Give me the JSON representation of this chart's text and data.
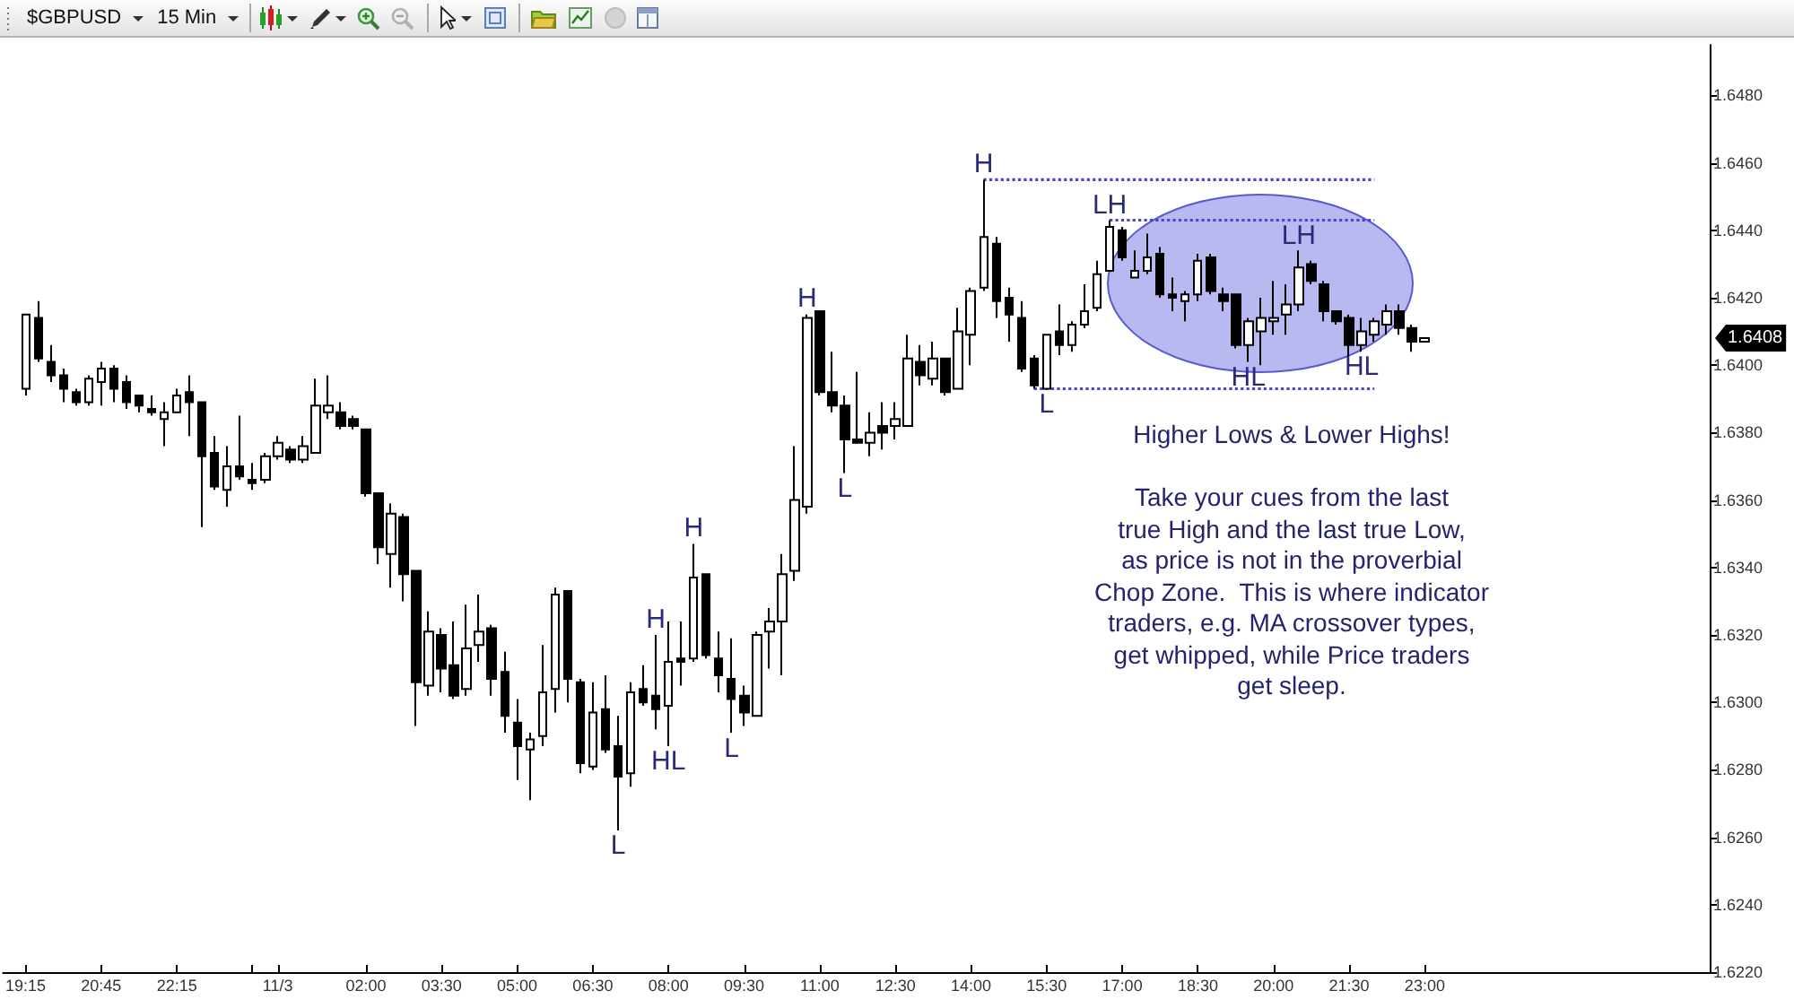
{
  "chart_data": {
    "type": "candlestick",
    "title": "$GBPUSD",
    "subtitle": "15 Min",
    "x": [
      "--11-02T19:15",
      "--11-02T19:30",
      "--11-02T19:45",
      "--11-02T20:00",
      "--11-02T20:15",
      "--11-02T20:30",
      "--11-02T20:45",
      "--11-02T21:00",
      "--11-02T21:15",
      "--11-02T21:30",
      "--11-02T21:45",
      "--11-02T22:00",
      "--11-02T22:15",
      "--11-02T22:30",
      "--11-02T22:45",
      "--11-02T23:00",
      "--11-02T23:15",
      "--11-02T23:30",
      "--11-02T23:45",
      "--11-03T00:00",
      "--11-03T00:15",
      "--11-03T00:30",
      "--11-03T00:45",
      "--11-03T01:00",
      "--11-03T01:15",
      "--11-03T01:30",
      "--11-03T01:45",
      "--11-03T02:00",
      "--11-03T02:15",
      "--11-03T02:30",
      "--11-03T02:45",
      "--11-03T03:00",
      "--11-03T03:15",
      "--11-03T03:30",
      "--11-03T03:45",
      "--11-03T04:00",
      "--11-03T04:15",
      "--11-03T04:30",
      "--11-03T04:45",
      "--11-03T05:00",
      "--11-03T05:15",
      "--11-03T05:30",
      "--11-03T05:45",
      "--11-03T06:00",
      "--11-03T06:15",
      "--11-03T06:30",
      "--11-03T06:45",
      "--11-03T07:00",
      "--11-03T07:15",
      "--11-03T07:30",
      "--11-03T07:45",
      "--11-03T08:00",
      "--11-03T08:15",
      "--11-03T08:30",
      "--11-03T08:45",
      "--11-03T09:00",
      "--11-03T09:15",
      "--11-03T09:30",
      "--11-03T09:45",
      "--11-03T10:00",
      "--11-03T10:15",
      "--11-03T10:30",
      "--11-03T10:45",
      "--11-03T11:00",
      "--11-03T11:15",
      "--11-03T11:30",
      "--11-03T11:45",
      "--11-03T12:00",
      "--11-03T12:15",
      "--11-03T12:30",
      "--11-03T12:45",
      "--11-03T13:00",
      "--11-03T13:15",
      "--11-03T13:30",
      "--11-03T13:45",
      "--11-03T14:00",
      "--11-03T14:15",
      "--11-03T14:30",
      "--11-03T14:45",
      "--11-03T15:00",
      "--11-03T15:15",
      "--11-03T15:30",
      "--11-03T15:45",
      "--11-03T16:00",
      "--11-03T16:15",
      "--11-03T16:30",
      "--11-03T16:45",
      "--11-03T17:00",
      "--11-03T17:15",
      "--11-03T17:30",
      "--11-03T17:45",
      "--11-03T18:00",
      "--11-03T18:15",
      "--11-03T18:30",
      "--11-03T18:45",
      "--11-03T19:00",
      "--11-03T19:15",
      "--11-03T19:30",
      "--11-03T19:45",
      "--11-03T20:00",
      "--11-03T20:15",
      "--11-03T20:30",
      "--11-03T20:45",
      "--11-03T21:00",
      "--11-03T21:15",
      "--11-03T21:30",
      "--11-03T21:45",
      "--11-03T22:00",
      "--11-03T22:15",
      "--11-03T22:30",
      "--11-03T22:45",
      "--11-03T23:00"
    ],
    "ohlc": [
      [
        1.6393,
        1.6415,
        1.6391,
        1.6415
      ],
      [
        1.6414,
        1.6419,
        1.6401,
        1.6402
      ],
      [
        1.6401,
        1.6406,
        1.6395,
        1.6397
      ],
      [
        1.6397,
        1.6399,
        1.6389,
        1.6393
      ],
      [
        1.6392,
        1.6393,
        1.6388,
        1.6389
      ],
      [
        1.6389,
        1.6397,
        1.6388,
        1.6396
      ],
      [
        1.6395,
        1.6401,
        1.6388,
        1.6399
      ],
      [
        1.6399,
        1.64,
        1.6389,
        1.6393
      ],
      [
        1.6395,
        1.6397,
        1.6387,
        1.6389
      ],
      [
        1.6391,
        1.6391,
        1.6386,
        1.6388
      ],
      [
        1.6387,
        1.6391,
        1.6385,
        1.6386
      ],
      [
        1.6384,
        1.6389,
        1.6376,
        1.6386
      ],
      [
        1.6386,
        1.6393,
        1.6386,
        1.6391
      ],
      [
        1.6392,
        1.6397,
        1.6379,
        1.6389
      ],
      [
        1.6389,
        1.6389,
        1.6352,
        1.6373
      ],
      [
        1.6374,
        1.6379,
        1.6363,
        1.6364
      ],
      [
        1.6363,
        1.6376,
        1.6358,
        1.637
      ],
      [
        1.637,
        1.6385,
        1.6366,
        1.6367
      ],
      [
        1.6366,
        1.6371,
        1.6363,
        1.6365
      ],
      [
        1.6366,
        1.6374,
        1.6365,
        1.6373
      ],
      [
        1.6373,
        1.6379,
        1.6372,
        1.6377
      ],
      [
        1.6375,
        1.6376,
        1.6371,
        1.6372
      ],
      [
        1.6372,
        1.6379,
        1.6371,
        1.6376
      ],
      [
        1.6374,
        1.6396,
        1.6374,
        1.6388
      ],
      [
        1.6386,
        1.6397,
        1.6384,
        1.6388
      ],
      [
        1.6386,
        1.6389,
        1.6381,
        1.6382
      ],
      [
        1.6384,
        1.6385,
        1.6381,
        1.6382
      ],
      [
        1.6381,
        1.6381,
        1.6361,
        1.6362
      ],
      [
        1.6362,
        1.6362,
        1.6341,
        1.6346
      ],
      [
        1.6344,
        1.6359,
        1.6334,
        1.6356
      ],
      [
        1.6355,
        1.6356,
        1.633,
        1.6338
      ],
      [
        1.6339,
        1.6339,
        1.6293,
        1.6306
      ],
      [
        1.6305,
        1.6327,
        1.6302,
        1.6321
      ],
      [
        1.632,
        1.6322,
        1.6303,
        1.631
      ],
      [
        1.6311,
        1.6324,
        1.6301,
        1.6302
      ],
      [
        1.6304,
        1.6329,
        1.6302,
        1.6316
      ],
      [
        1.6317,
        1.6332,
        1.6312,
        1.6321
      ],
      [
        1.6322,
        1.6323,
        1.6302,
        1.6307
      ],
      [
        1.6309,
        1.6315,
        1.6291,
        1.6296
      ],
      [
        1.6294,
        1.6301,
        1.6277,
        1.6287
      ],
      [
        1.6286,
        1.6291,
        1.6271,
        1.6289
      ],
      [
        1.629,
        1.6317,
        1.6287,
        1.6303
      ],
      [
        1.6304,
        1.6334,
        1.6297,
        1.6332
      ],
      [
        1.6333,
        1.6333,
        1.63,
        1.6307
      ],
      [
        1.6306,
        1.6307,
        1.6279,
        1.6282
      ],
      [
        1.6281,
        1.6306,
        1.628,
        1.6297
      ],
      [
        1.6298,
        1.6308,
        1.6285,
        1.6286
      ],
      [
        1.6287,
        1.6296,
        1.6262,
        1.6278
      ],
      [
        1.6279,
        1.6306,
        1.6275,
        1.6303
      ],
      [
        1.6304,
        1.6311,
        1.6299,
        1.63
      ],
      [
        1.6302,
        1.632,
        1.6292,
        1.6298
      ],
      [
        1.6299,
        1.6324,
        1.6287,
        1.6312
      ],
      [
        1.6313,
        1.6324,
        1.6305,
        1.6312
      ],
      [
        1.6313,
        1.6347,
        1.6312,
        1.6337
      ],
      [
        1.6338,
        1.6338,
        1.6313,
        1.6314
      ],
      [
        1.6313,
        1.6321,
        1.6303,
        1.6308
      ],
      [
        1.6307,
        1.6319,
        1.6291,
        1.6301
      ],
      [
        1.6302,
        1.6305,
        1.6293,
        1.6297
      ],
      [
        1.6296,
        1.6321,
        1.6296,
        1.632
      ],
      [
        1.6321,
        1.6328,
        1.631,
        1.6324
      ],
      [
        1.6324,
        1.6344,
        1.6308,
        1.6338
      ],
      [
        1.6339,
        1.6376,
        1.6336,
        1.636
      ],
      [
        1.6358,
        1.6415,
        1.6356,
        1.6414
      ],
      [
        1.6416,
        1.6416,
        1.6391,
        1.6392
      ],
      [
        1.6392,
        1.6404,
        1.6386,
        1.6388
      ],
      [
        1.6388,
        1.6391,
        1.6368,
        1.6378
      ],
      [
        1.6378,
        1.6398,
        1.6377,
        1.6377
      ],
      [
        1.6377,
        1.6386,
        1.6373,
        1.638
      ],
      [
        1.6382,
        1.6389,
        1.6375,
        1.638
      ],
      [
        1.6382,
        1.6389,
        1.6378,
        1.6384
      ],
      [
        1.6382,
        1.6409,
        1.6382,
        1.6402
      ],
      [
        1.6401,
        1.6406,
        1.6394,
        1.6397
      ],
      [
        1.6396,
        1.6407,
        1.6394,
        1.6402
      ],
      [
        1.6402,
        1.6402,
        1.6391,
        1.6392
      ],
      [
        1.6393,
        1.6417,
        1.6393,
        1.641
      ],
      [
        1.6409,
        1.6423,
        1.64,
        1.6422
      ],
      [
        1.6423,
        1.6455,
        1.6422,
        1.6438
      ],
      [
        1.6436,
        1.6438,
        1.6414,
        1.6419
      ],
      [
        1.642,
        1.6423,
        1.6407,
        1.6415
      ],
      [
        1.6414,
        1.6419,
        1.6398,
        1.6399
      ],
      [
        1.6402,
        1.6403,
        1.6393,
        1.6394
      ],
      [
        1.6393,
        1.6409,
        1.6393,
        1.6409
      ],
      [
        1.641,
        1.6418,
        1.6403,
        1.6406
      ],
      [
        1.6406,
        1.6413,
        1.6404,
        1.6412
      ],
      [
        1.6412,
        1.6424,
        1.6411,
        1.6416
      ],
      [
        1.6417,
        1.6431,
        1.6416,
        1.6427
      ],
      [
        1.6428,
        1.6443,
        1.6428,
        1.6441
      ],
      [
        1.644,
        1.6441,
        1.6431,
        1.6432
      ],
      [
        1.6426,
        1.6434,
        1.6426,
        1.6428
      ],
      [
        1.6428,
        1.6439,
        1.6427,
        1.6432
      ],
      [
        1.6433,
        1.6435,
        1.642,
        1.6421
      ],
      [
        1.6421,
        1.6426,
        1.6416,
        1.642
      ],
      [
        1.6419,
        1.6422,
        1.6413,
        1.6421
      ],
      [
        1.6421,
        1.6433,
        1.6419,
        1.6431
      ],
      [
        1.6432,
        1.6433,
        1.6421,
        1.6422
      ],
      [
        1.6421,
        1.6423,
        1.6416,
        1.6419
      ],
      [
        1.6421,
        1.6421,
        1.6405,
        1.6406
      ],
      [
        1.6406,
        1.6414,
        1.6401,
        1.6413
      ],
      [
        1.641,
        1.642,
        1.64,
        1.6414
      ],
      [
        1.6413,
        1.6425,
        1.6409,
        1.6414
      ],
      [
        1.6415,
        1.6424,
        1.6409,
        1.6418
      ],
      [
        1.6418,
        1.6434,
        1.6416,
        1.6429
      ],
      [
        1.643,
        1.6431,
        1.6424,
        1.6425
      ],
      [
        1.6424,
        1.6425,
        1.6413,
        1.6416
      ],
      [
        1.6416,
        1.6416,
        1.6412,
        1.6413
      ],
      [
        1.6414,
        1.6415,
        1.6402,
        1.6406
      ],
      [
        1.6406,
        1.6414,
        1.6404,
        1.641
      ],
      [
        1.6409,
        1.6414,
        1.6407,
        1.6413
      ],
      [
        1.6412,
        1.6418,
        1.6409,
        1.6416
      ],
      [
        1.6416,
        1.6418,
        1.6409,
        1.6411
      ],
      [
        1.6411,
        1.6412,
        1.6404,
        1.6407
      ],
      [
        1.6407,
        1.6408,
        1.6407,
        1.6408
      ]
    ],
    "series": [
      {
        "type": "line",
        "x": [
          "--11-03T14:15",
          "--11-03T22:00"
        ],
        "values": [
          1.6455,
          1.6455
        ],
        "color": "#4646c8",
        "line_style": "dotted",
        "marker": "none"
      },
      {
        "type": "line",
        "x": [
          "--11-03T16:45",
          "--11-03T22:00"
        ],
        "values": [
          1.6443,
          1.6443
        ],
        "color": "#4646c8",
        "line_style": "dotted",
        "marker": "none"
      },
      {
        "type": "line",
        "x": [
          "--11-03T15:15",
          "--11-03T22:00"
        ],
        "values": [
          1.6393,
          1.6393
        ],
        "color": "#4646c8",
        "line_style": "dotted",
        "marker": "none"
      }
    ],
    "xlim": [
      "--11-02T18:48",
      "--11-04T04:39"
    ],
    "xticks": [
      {
        "value": "--11-02T19:15",
        "label": "19:15"
      },
      {
        "value": "--11-02T20:45",
        "label": "20:45"
      },
      {
        "value": "--11-02T22:15",
        "label": "22:15"
      },
      {
        "value": "--11-02T23:45",
        "label": null
      },
      {
        "value": "--11-03T00:15",
        "label": "11/3"
      },
      {
        "value": "--11-03T02:00",
        "label": "02:00"
      },
      {
        "value": "--11-03T03:30",
        "label": "03:30"
      },
      {
        "value": "--11-03T05:00",
        "label": "05:00"
      },
      {
        "value": "--11-03T06:30",
        "label": "06:30"
      },
      {
        "value": "--11-03T08:00",
        "label": "08:00"
      },
      {
        "value": "--11-03T09:30",
        "label": "09:30"
      },
      {
        "value": "--11-03T11:00",
        "label": "11:00"
      },
      {
        "value": "--11-03T12:30",
        "label": "12:30"
      },
      {
        "value": "--11-03T14:00",
        "label": "14:00"
      },
      {
        "value": "--11-03T15:30",
        "label": "15:30"
      },
      {
        "value": "--11-03T17:00",
        "label": "17:00"
      },
      {
        "value": "--11-03T18:30",
        "label": "18:30"
      },
      {
        "value": "--11-03T20:00",
        "label": "20:00"
      },
      {
        "value": "--11-03T21:30",
        "label": "21:30"
      },
      {
        "value": "--11-03T23:00",
        "label": "23:00"
      }
    ],
    "ylim": [
      1.622,
      1.6495
    ],
    "yticks": [
      {
        "value": 1.622,
        "label": "1.6220"
      },
      {
        "value": 1.624,
        "label": "1.6240"
      },
      {
        "value": 1.626,
        "label": "1.6260"
      },
      {
        "value": 1.628,
        "label": "1.6280"
      },
      {
        "value": 1.63,
        "label": "1.6300"
      },
      {
        "value": 1.632,
        "label": "1.6320"
      },
      {
        "value": 1.634,
        "label": "1.6340"
      },
      {
        "value": 1.636,
        "label": "1.6360"
      },
      {
        "value": 1.638,
        "label": "1.6380"
      },
      {
        "value": 1.64,
        "label": "1.6400"
      },
      {
        "value": 1.642,
        "label": "1.6420"
      },
      {
        "value": 1.644,
        "label": "1.6440"
      },
      {
        "value": 1.646,
        "label": "1.6460"
      },
      {
        "value": 1.648,
        "label": "1.6480"
      }
    ],
    "annotations": [
      {
        "text": "L",
        "x": "--11-03T07:00",
        "y": 1.6262
      },
      {
        "text": "HL",
        "x": "--11-03T08:00",
        "y": 1.6287
      },
      {
        "text": "H",
        "x": "--11-03T07:45",
        "y": 1.632
      },
      {
        "text": "H",
        "x": "--11-03T08:30",
        "y": 1.6347
      },
      {
        "text": "L",
        "x": "--11-03T09:15",
        "y": 1.6291
      },
      {
        "text": "H",
        "x": "--11-03T10:45",
        "y": 1.6415
      },
      {
        "text": "L",
        "x": "--11-03T11:30",
        "y": 1.6368
      },
      {
        "text": "H",
        "x": "--11-03T14:15",
        "y": 1.6455
      },
      {
        "text": "L",
        "x": "--11-03T15:30",
        "y": 1.6393
      },
      {
        "text": "LH",
        "x": "--11-03T16:45",
        "y": 1.6443
      },
      {
        "text": "LH",
        "x": "--11-03T20:30",
        "y": 1.6434
      },
      {
        "text": "HL",
        "x": "--11-03T19:30",
        "y": 1.6401
      },
      {
        "text": "HL",
        "x": "--11-03T21:45",
        "y": 1.6404
      },
      "1.6408",
      "Higher Lows & Lower Highs!",
      "Take your cues from the last\ntrue High and the last true Low,\nas price is not in the proverbial\nChop Zone.  This is where indicator\ntraders, e.g. MA crossover types,\nget whipped, while Price traders\nget sleep."
    ]
  }
}
